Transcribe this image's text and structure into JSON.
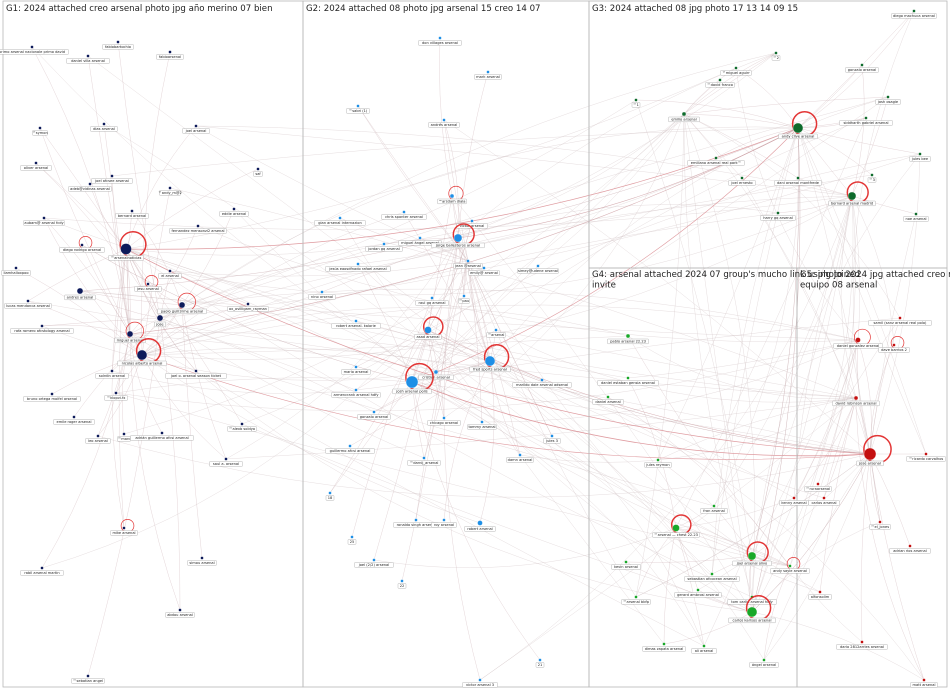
{
  "colors": {
    "g1": "#0d1a5a",
    "g2": "#1e8fe6",
    "g3": "#0e6b2c",
    "g4": "#18a828",
    "g5": "#c41010",
    "edge": "#c9aeb2",
    "self_loop": "#e02020",
    "border": "#b8b8b8"
  },
  "groups": [
    {
      "id": "g1",
      "color": "g1",
      "title": "G1: 2024 attached creo arsenal photo jpg año merino 07 bien",
      "nodes": [
        {
          "label": "primo arsenal nacionale primo david",
          "r": 1.5
        },
        {
          "label": "daniel villa arsenal",
          "r": 1.5
        },
        {
          "label": "fabiobartochio",
          "r": 1.5
        },
        {
          "label": "fabioarsenal",
          "r": 1.5
        },
        {
          "label": "™symon",
          "r": 1.5
        },
        {
          "label": "dias arsenal",
          "r": 1.5
        },
        {
          "label": "joel arsenal",
          "r": 1.5
        },
        {
          "label": "oliver arsenal",
          "r": 1.5
        },
        {
          "label": "joel afcsee arsenal",
          "r": 1.5
        },
        {
          "label": "adeb@vidinas arsenal",
          "r": 1.5
        },
        {
          "label": "™andy_m@2",
          "r": 1.5
        },
        {
          "label": "saf",
          "r": 1.5
        },
        {
          "label": "eddie arsenal",
          "r": 1.5
        },
        {
          "label": "aubam@ arsenal fcdy",
          "r": 1.5
        },
        {
          "label": "bernard arsenal",
          "r": 1.5
        },
        {
          "label": "fernandez mensonzi2 arsenal",
          "r": 1.5
        },
        {
          "label": "diego rodrigo arsenal",
          "r": 1.5
        },
        {
          "label": "™arsenalnoticias",
          "r": 5.5
        },
        {
          "label": "el arsenal",
          "r": 1.5
        },
        {
          "label": "liamhalloxpoo",
          "r": 1.5
        },
        {
          "label": "jesu arsenal",
          "r": 1.5
        },
        {
          "label": "andres arsenal",
          "r": 3
        },
        {
          "label": "lucas mendonca arsenal",
          "r": 1.5
        },
        {
          "label": "paolo guill3rme arsenal",
          "r": 3
        },
        {
          "label": "ox_ovilligam_rayman",
          "r": 1.5
        },
        {
          "label": "rafa romero afcstology arsenal",
          "r": 1.5
        },
        {
          "label": "jose",
          "r": 3
        },
        {
          "label": "miguel arsenal",
          "r": 3
        },
        {
          "label": "nicolás alberto arsenal",
          "r": 5
        },
        {
          "label": "joel o. arsenal season ticket",
          "r": 1.5
        },
        {
          "label": "solrdin arsenal",
          "r": 1.5
        },
        {
          "label": "™klopvi.fx",
          "r": 1.5
        },
        {
          "label": "bruno ortega moifel arsenal",
          "r": 1.5
        },
        {
          "label": "emile roger arsenal",
          "r": 1.5
        },
        {
          "label": "™alexb soldyo",
          "r": 1.5
        },
        {
          "label": "™marc",
          "r": 1.5
        },
        {
          "label": "adrián guillermo afcsi arsenal",
          "r": 1.5
        },
        {
          "label": "leo arsenal",
          "r": 1.5
        },
        {
          "label": "saul a. arsenal",
          "r": 1.5
        },
        {
          "label": "mike arsenal",
          "r": 1.5
        },
        {
          "label": "simou arsenal",
          "r": 1.5
        },
        {
          "label": "rabil arsenal martin",
          "r": 1.5
        },
        {
          "label": "abdou arsenal",
          "r": 1.5
        },
        {
          "label": "™sebatian angel",
          "r": 1.5
        }
      ]
    },
    {
      "id": "g2",
      "color": "g2",
      "title": "G2: 2024 attached 08 photo jpg arsenal 15 creo 14 07",
      "nodes": [
        {
          "label": "don villages arsenal",
          "r": 1.5
        },
        {
          "label": "mark arsenal",
          "r": 1.5
        },
        {
          "label": "™sabri (1)",
          "r": 1.5
        },
        {
          "label": "andrés arsenal",
          "r": 1.5
        },
        {
          "label": "™arsdam diala",
          "r": 2
        },
        {
          "label": "gian arsenal internazion",
          "r": 1.5
        },
        {
          "label": "chris sponter arsenal",
          "r": 1.5
        },
        {
          "label": "victor arsenal",
          "r": 1.5
        },
        {
          "label": "jordan gq arsenal",
          "r": 1.5
        },
        {
          "label": "miguel ángel arsenal",
          "r": 1.5
        },
        {
          "label": "jorge ballesteros arsenal",
          "r": 4
        },
        {
          "label": "jean @arsenal",
          "r": 1.5
        },
        {
          "label": "jesús eaosdfnado rafael arsenal",
          "r": 1.5
        },
        {
          "label": "emily@ arsenal",
          "r": 1.5
        },
        {
          "label": "simey@udene arsenal",
          "r": 1.5
        },
        {
          "label": "nino arsenal",
          "r": 1.5
        },
        {
          "label": "raul gq arsenal",
          "r": 1.5
        },
        {
          "label": "™pau",
          "r": 1.5
        },
        {
          "label": "robert arsenal. kalorie",
          "r": 1.5
        },
        {
          "label": "asad arsenal",
          "r": 3.5
        },
        {
          "label": "™arsenal",
          "r": 1.5
        },
        {
          "label": "mario arsenal",
          "r": 1.5
        },
        {
          "label": "armencrank arsenal hdfy",
          "r": 1.5
        },
        {
          "label": "cristian arsenal",
          "r": 2
        },
        {
          "label": "fred sports arsenal",
          "r": 5
        },
        {
          "label": "josh arsenal polis",
          "r": 6
        },
        {
          "label": "gonzalo arsenal",
          "r": 1.5
        },
        {
          "label": "chicago arsenal",
          "r": 1.5
        },
        {
          "label": "tommy arsenal",
          "r": 1.5
        },
        {
          "label": "guillermo afcsi arsenal",
          "r": 1.5
        },
        {
          "label": "™darnij_arsenal",
          "r": 1.5
        },
        {
          "label": "damn arsenal",
          "r": 1.5
        },
        {
          "label": "marildo daie arsenal adsenal",
          "r": 1.5
        },
        {
          "label": "jules 3",
          "r": 1.5
        },
        {
          "label": "ronaldo singh arsenal",
          "r": 1.5
        },
        {
          "label": "roy arsenal",
          "r": 1.5
        },
        {
          "label": "robert arsenal",
          "r": 2.5
        },
        {
          "label": "18",
          "r": 1.5
        },
        {
          "label": "25",
          "r": 1.5
        },
        {
          "label": "joel (2/2) arsenal",
          "r": 1.5
        },
        {
          "label": "22",
          "r": 1.5
        },
        {
          "label": "21",
          "r": 1.5
        },
        {
          "label": "victor arsenal 3",
          "r": 1.5
        }
      ]
    },
    {
      "id": "g3",
      "color": "g3",
      "title": "G3: 2024 attached 08 jpg photo 17 13 14 09 15",
      "nodes": [
        {
          "label": "diego machuca arsenal",
          "r": 1.5
        },
        {
          "label": "™miguel aguirr",
          "r": 1.5
        },
        {
          "label": "™2",
          "r": 1.5
        },
        {
          "label": "gonzalo arsenal",
          "r": 1.5
        },
        {
          "label": "josh osagie",
          "r": 1.5
        },
        {
          "label": "™david franco",
          "r": 1.5
        },
        {
          "label": "™1",
          "r": 1.5
        },
        {
          "label": "emilio arsenal",
          "r": 2
        },
        {
          "label": "andy clive arsenal",
          "r": 5
        },
        {
          "label": "siddharth gabriel arsenal",
          "r": 1.5
        },
        {
          "label": "emiliano arsenal real park™",
          "r": 1.5
        },
        {
          "label": "jules bee",
          "r": 1.5
        },
        {
          "label": "joel ernesto",
          "r": 1.5
        },
        {
          "label": "dani arsenal montfrede",
          "r": 1.5
        },
        {
          "label": "™3",
          "r": 1.5
        },
        {
          "label": "bernard arsenal madrid",
          "r": 4
        },
        {
          "label": "harry gq arsenal",
          "r": 1.5
        },
        {
          "label": "noe arsenal",
          "r": 1.5
        }
      ]
    },
    {
      "id": "g4",
      "color": "g4",
      "title": "G4: arsenal attached 2024 07 group's mucho link using joined invite",
      "nodes": [
        {
          "label": "pablo arsenal 22.23",
          "r": 2
        },
        {
          "label": "daniel estaban gensia arsenal",
          "r": 1.5
        },
        {
          "label": "daniel arsenal",
          "r": 1.5
        },
        {
          "label": "jules reymon",
          "r": 1.5
        },
        {
          "label": "fran arsenal",
          "r": 1.5
        },
        {
          "label": "™arsenal — chest 22.23",
          "r": 3.5
        },
        {
          "label": "kevin arsenal",
          "r": 1.5
        },
        {
          "label": "joel arsenal olivo",
          "r": 4
        },
        {
          "label": "sebastian afcocean arsenal",
          "r": 1.5
        },
        {
          "label": "andy sayle arsenal",
          "r": 1.5
        },
        {
          "label": "gerard ambrosi arsenal",
          "r": 1.5
        },
        {
          "label": "™arsenal bbfp",
          "r": 1.5
        },
        {
          "label": "tom carlin arsenal hdfy",
          "r": 1.5
        },
        {
          "label": "carlos karlsos arsenal",
          "r": 5
        },
        {
          "label": "dimas zapata arsenal",
          "r": 1.5
        },
        {
          "label": "ali arsenal",
          "r": 1.5
        },
        {
          "label": "ángel arsenal",
          "r": 1.5
        }
      ]
    },
    {
      "id": "g5",
      "color": "g5",
      "title": "G5: photo 2024 jpg attached creo message edited equipo 08 arsenal",
      "nodes": [
        {
          "label": "samil (sanz arsenal real polo)",
          "r": 1.5
        },
        {
          "label": "daniel gonzalez arsenal",
          "r": 2.5
        },
        {
          "label": "dave barrios 2",
          "r": 1.5
        },
        {
          "label": "david robinson arsenal",
          "r": 2
        },
        {
          "label": "josé arsenal",
          "r": 6
        },
        {
          "label": "™ricardo carvalhos",
          "r": 1.5
        },
        {
          "label": "™ruraarsenal",
          "r": 1.5
        },
        {
          "label": "carlos arsenal",
          "r": 1.5
        },
        {
          "label": "™el_jones",
          "r": 1.5
        },
        {
          "label": "kenny arsenal",
          "r": 1.5
        },
        {
          "label": "adrian rios arsenal",
          "r": 1.5
        },
        {
          "label": "alfonsolim",
          "r": 1.5
        },
        {
          "label": "dario 2812arrles arsenal",
          "r": 1.5
        },
        {
          "label": "matt arsenal",
          "r": 1.5
        }
      ]
    }
  ]
}
